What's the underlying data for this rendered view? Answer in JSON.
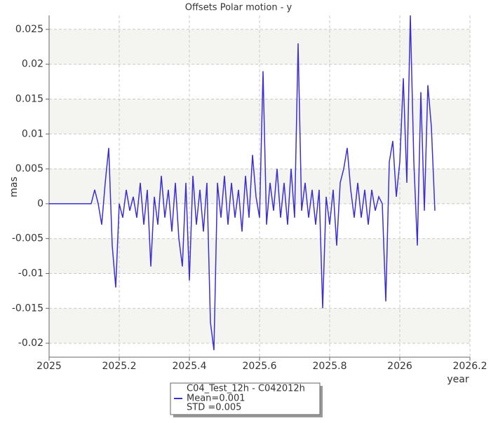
{
  "chart_data": {
    "type": "line",
    "title": "Offsets Polar motion - y",
    "xlabel": "year",
    "ylabel": "mas",
    "x": [
      2025,
      2025.12,
      2025.13,
      2025.14,
      2025.15,
      2025.16,
      2025.17,
      2025.18,
      2025.19,
      2025.2,
      2025.21,
      2025.22,
      2025.23,
      2025.24,
      2025.25,
      2025.26,
      2025.27,
      2025.28,
      2025.29,
      2025.3,
      2025.31,
      2025.32,
      2025.33,
      2025.34,
      2025.35,
      2025.36,
      2025.37,
      2025.38,
      2025.39,
      2025.4,
      2025.41,
      2025.42,
      2025.43,
      2025.44,
      2025.45,
      2025.46,
      2025.47,
      2025.48,
      2025.49,
      2025.5,
      2025.51,
      2025.52,
      2025.53,
      2025.54,
      2025.55,
      2025.56,
      2025.57,
      2025.58,
      2025.59,
      2025.6,
      2025.61,
      2025.62,
      2025.63,
      2025.64,
      2025.65,
      2025.66,
      2025.67,
      2025.68,
      2025.69,
      2025.7,
      2025.71,
      2025.72,
      2025.73,
      2025.74,
      2025.75,
      2025.76,
      2025.77,
      2025.78,
      2025.79,
      2025.8,
      2025.81,
      2025.82,
      2025.83,
      2025.84,
      2025.85,
      2025.86,
      2025.87,
      2025.88,
      2025.89,
      2025.9,
      2025.91,
      2025.92,
      2025.93,
      2025.94,
      2025.95,
      2025.96,
      2025.97,
      2025.98,
      2025.99,
      2026,
      2026.01,
      2026.02,
      2026.03,
      2026.04,
      2026.05,
      2026.06,
      2026.07,
      2026.08,
      2026.09,
      2026.1
    ],
    "series": [
      {
        "name": "C04_Test_12h - C042012h",
        "color": "#3b2fd4",
        "values": [
          0,
          0,
          0.002,
          0,
          -0.003,
          0.003,
          0.008,
          -0.006,
          -0.012,
          0,
          -0.002,
          0.002,
          -0.001,
          0.001,
          -0.002,
          0.003,
          -0.003,
          0.002,
          -0.009,
          0.001,
          -0.003,
          0.004,
          -0.002,
          0.002,
          -0.004,
          0.003,
          -0.005,
          -0.009,
          0.003,
          -0.011,
          0.004,
          -0.003,
          0.002,
          -0.004,
          0.003,
          -0.017,
          -0.021,
          0.003,
          -0.002,
          0.004,
          -0.003,
          0.003,
          -0.002,
          0.002,
          -0.004,
          0.004,
          -0.002,
          0.007,
          0.001,
          -0.002,
          0.019,
          -0.003,
          0.003,
          -0.001,
          0.005,
          -0.002,
          0.003,
          -0.003,
          0.005,
          -0.002,
          0.023,
          -0.001,
          0.003,
          -0.002,
          0.002,
          -0.003,
          0.002,
          -0.015,
          0.001,
          -0.003,
          0.002,
          -0.006,
          0.003,
          0.005,
          0.008,
          0.002,
          -0.002,
          0.003,
          -0.002,
          0.002,
          -0.003,
          0.002,
          -0.001,
          0.001,
          0,
          -0.014,
          0.006,
          0.009,
          0.001,
          0.006,
          0.018,
          0.003,
          0.027,
          0.006,
          -0.006,
          0.016,
          -0.001,
          0.017,
          0.011,
          -0.001
        ]
      }
    ],
    "legend_lines": [
      "Mean=0.001",
      "STD =0.005"
    ],
    "xlim": [
      2025,
      2026.2
    ],
    "xticks": [
      2025,
      2025.2,
      2025.4,
      2025.6,
      2025.8,
      2026,
      2026.2
    ],
    "ylim": [
      -0.022,
      0.027
    ],
    "yticks": [
      -0.02,
      -0.015,
      -0.01,
      -0.005,
      0,
      0.005,
      0.01,
      0.015,
      0.02,
      0.025
    ],
    "grid": true
  }
}
